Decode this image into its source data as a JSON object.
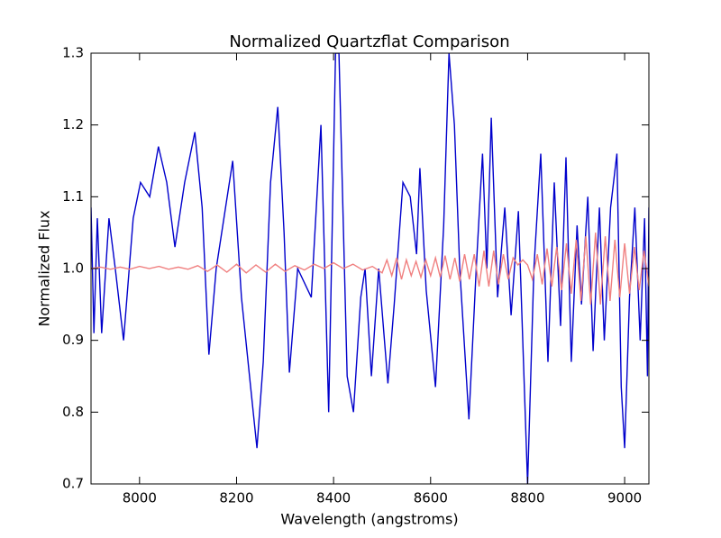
{
  "chart_data": {
    "type": "line",
    "title": "Normalized Quartzflat Comparison",
    "xlabel": "Wavelength (angstroms)",
    "ylabel": "Normalized Flux",
    "xlim": [
      7900,
      9050
    ],
    "xticks": [
      8000,
      8200,
      8400,
      8600,
      8800,
      9000
    ],
    "ylim": [
      0.7,
      1.3
    ],
    "yticks": [
      0.7,
      0.8,
      0.9,
      {
        "value": 1,
        "label": "1.0"
      },
      1.1,
      1.2,
      1.3
    ],
    "grid": false,
    "series": [
      {
        "color": "#0000cc",
        "x": [
          7900,
          7906,
          7913,
          7922,
          7937,
          7950,
          7967,
          7987,
          8002,
          8021,
          8039,
          8056,
          8073,
          8093,
          8114,
          8129,
          8143,
          8158,
          8192,
          8210,
          8229,
          8242,
          8255,
          8270,
          8285,
          8298,
          8309,
          8326,
          8354,
          8374,
          8390,
          8404,
          8411,
          8428,
          8441,
          8456,
          8465,
          8478,
          8493,
          8512,
          8525,
          8543,
          8558,
          8571,
          8578,
          8591,
          8610,
          8627,
          8638,
          8649,
          8660,
          8679,
          8694,
          8707,
          8716,
          8725,
          8738,
          8753,
          8766,
          8781,
          8800,
          8813,
          8827,
          8842,
          8855,
          8868,
          8879,
          8890,
          8902,
          8911,
          8924,
          8935,
          8948,
          8958,
          8971,
          8984,
          8993,
          9000,
          9010,
          9021,
          9032,
          9041,
          9047,
          9050
        ],
        "values": [
          1.085,
          0.91,
          1.07,
          0.91,
          1.07,
          1.0,
          0.9,
          1.07,
          1.12,
          1.1,
          1.17,
          1.12,
          1.03,
          1.12,
          1.19,
          1.085,
          0.88,
          1.0,
          1.15,
          0.96,
          0.835,
          0.75,
          0.87,
          1.12,
          1.225,
          1.05,
          0.855,
          1.0,
          0.96,
          1.2,
          0.8,
          1.3,
          1.3,
          0.85,
          0.8,
          0.96,
          1.0,
          0.85,
          1.0,
          0.84,
          0.95,
          1.12,
          1.1,
          1.02,
          1.14,
          0.97,
          0.835,
          1.06,
          1.3,
          1.2,
          1.0,
          0.79,
          1.0,
          1.16,
          1.0,
          1.21,
          0.96,
          1.085,
          0.935,
          1.08,
          0.7,
          1.0,
          1.16,
          0.87,
          1.12,
          0.92,
          1.155,
          0.87,
          1.06,
          0.95,
          1.1,
          0.885,
          1.085,
          0.9,
          1.085,
          1.16,
          0.835,
          0.75,
          0.96,
          1.085,
          0.9,
          1.07,
          0.85,
          1.085
        ]
      },
      {
        "color": "#f08080",
        "x": [
          7900,
          7920,
          7940,
          7960,
          7980,
          8000,
          8020,
          8040,
          8060,
          8080,
          8100,
          8120,
          8140,
          8160,
          8180,
          8200,
          8220,
          8240,
          8260,
          8280,
          8300,
          8320,
          8340,
          8360,
          8380,
          8400,
          8420,
          8440,
          8460,
          8480,
          8500,
          8510,
          8520,
          8530,
          8540,
          8550,
          8560,
          8570,
          8580,
          8590,
          8600,
          8610,
          8620,
          8630,
          8640,
          8650,
          8660,
          8670,
          8680,
          8690,
          8700,
          8710,
          8720,
          8730,
          8740,
          8750,
          8760,
          8770,
          8780,
          8790,
          8800,
          8810,
          8820,
          8830,
          8840,
          8850,
          8860,
          8870,
          8880,
          8890,
          8900,
          8910,
          8920,
          8930,
          8940,
          8950,
          8960,
          8970,
          8980,
          8990,
          9000,
          9010,
          9020,
          9030,
          9040,
          9050
        ],
        "values": [
          1.0,
          1.002,
          0.999,
          1.002,
          0.999,
          1.003,
          1.0,
          1.003,
          0.999,
          1.002,
          0.999,
          1.004,
          0.996,
          1.005,
          0.995,
          1.006,
          0.994,
          1.005,
          0.995,
          1.006,
          0.996,
          1.004,
          0.998,
          1.006,
          1.0,
          1.008,
          1.0,
          1.006,
          0.998,
          1.003,
          0.994,
          1.012,
          0.99,
          1.015,
          0.985,
          1.012,
          0.99,
          1.01,
          0.988,
          1.012,
          0.99,
          1.015,
          0.988,
          1.018,
          0.985,
          1.015,
          0.982,
          1.02,
          0.985,
          1.02,
          0.975,
          1.025,
          0.975,
          1.025,
          0.978,
          1.02,
          0.985,
          1.015,
          1.005,
          1.012,
          1.005,
          0.985,
          1.02,
          0.978,
          1.028,
          0.975,
          1.03,
          0.97,
          1.035,
          0.965,
          1.04,
          0.955,
          1.045,
          0.95,
          1.05,
          0.95,
          1.045,
          0.955,
          1.04,
          0.96,
          1.035,
          0.965,
          1.03,
          0.97,
          1.025,
          0.975
        ]
      }
    ]
  }
}
